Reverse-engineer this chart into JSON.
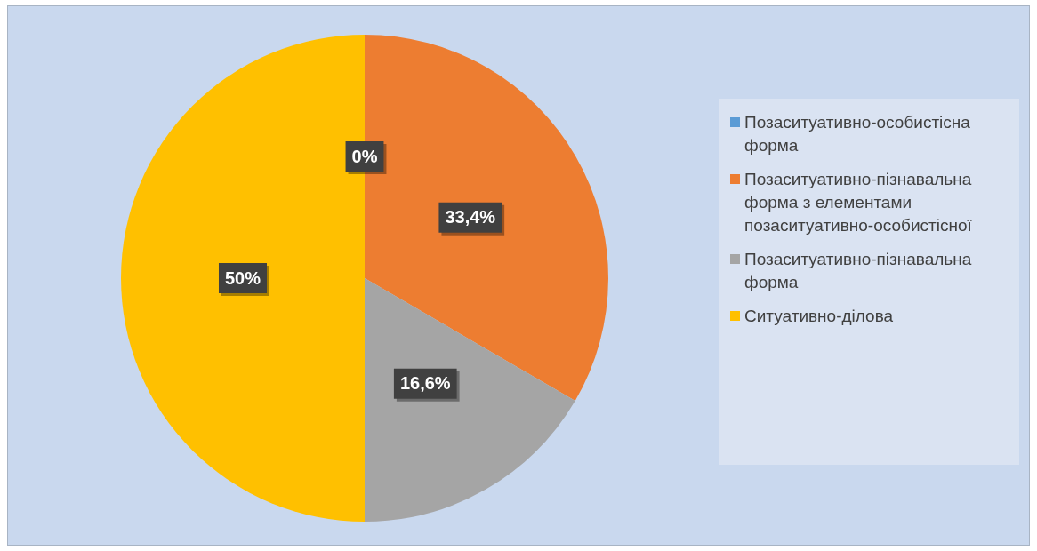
{
  "chart_data": {
    "type": "pie",
    "categories": [
      "Позаситуативно-особистісна форма",
      "Позаситуативно-пізнавальна форма з елементами позаситуативно-особистісної",
      "Позаситуативно-пізнавальна форма",
      "Ситуативно-ділова"
    ],
    "values": [
      0,
      33.4,
      16.6,
      50
    ],
    "colors": [
      "#5b9bd5",
      "#ed7d31",
      "#a5a5a5",
      "#ffc000"
    ],
    "value_labels": [
      "0%",
      "33,4%",
      "16,6%",
      "50%"
    ],
    "legend": "right"
  }
}
